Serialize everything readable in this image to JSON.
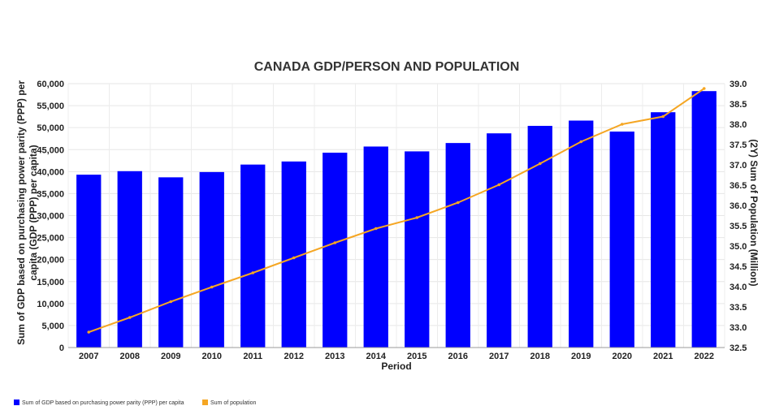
{
  "chart_data": {
    "type": "bar",
    "title": "CANADA GDP/PERSON AND POPULATION",
    "xlabel": "Period",
    "ylabel": "Sum of GDP based on purchasing power parity (PPP) per capita (GDP (PPP) per capita)",
    "ylabel_lines": [
      "Sum of GDP based on purchasing power parity (PPP) per",
      "capita (GDP (PPP) per capita)"
    ],
    "y2label": "(2Y) Sum of Population (Million)",
    "categories": [
      "2007",
      "2008",
      "2009",
      "2010",
      "2011",
      "2012",
      "2013",
      "2014",
      "2015",
      "2016",
      "2017",
      "2018",
      "2019",
      "2020",
      "2021",
      "2022"
    ],
    "ylim": [
      0,
      60000
    ],
    "yticks": [
      0,
      5000,
      10000,
      15000,
      20000,
      25000,
      30000,
      35000,
      40000,
      45000,
      50000,
      55000,
      60000
    ],
    "ytick_labels": [
      "0",
      "5,000",
      "10,000",
      "15,000",
      "20,000",
      "25,000",
      "30,000",
      "35,000",
      "40,000",
      "45,000",
      "50,000",
      "55,000",
      "60,000"
    ],
    "y2lim": [
      32.5,
      39.0
    ],
    "y2ticks": [
      32.5,
      33.0,
      33.5,
      34.0,
      34.5,
      35.0,
      35.5,
      36.0,
      36.5,
      37.0,
      37.5,
      38.0,
      38.5,
      39.0
    ],
    "y2tick_labels": [
      "32.5",
      "33.0",
      "33.5",
      "34.0",
      "34.5",
      "35.0",
      "35.5",
      "36.0",
      "36.5",
      "37.0",
      "37.5",
      "38.0",
      "38.5",
      "39.0"
    ],
    "grid": true,
    "legend_position": "bottom-left",
    "series": [
      {
        "name": "Sum of GDP based on purchasing power parity (PPP) per capita",
        "type": "bar",
        "axis": "left",
        "color": "#0000ff",
        "values": [
          39300,
          40100,
          38700,
          39900,
          41600,
          42300,
          44300,
          45700,
          44600,
          46500,
          48700,
          50400,
          51600,
          49100,
          53500,
          58300
        ]
      },
      {
        "name": "Sum of population",
        "type": "line",
        "axis": "right",
        "color": "#f5a623",
        "values": [
          32.88,
          33.24,
          33.63,
          33.99,
          34.34,
          34.71,
          35.08,
          35.43,
          35.7,
          36.07,
          36.51,
          37.03,
          37.57,
          38.0,
          38.19,
          38.88
        ]
      }
    ]
  }
}
